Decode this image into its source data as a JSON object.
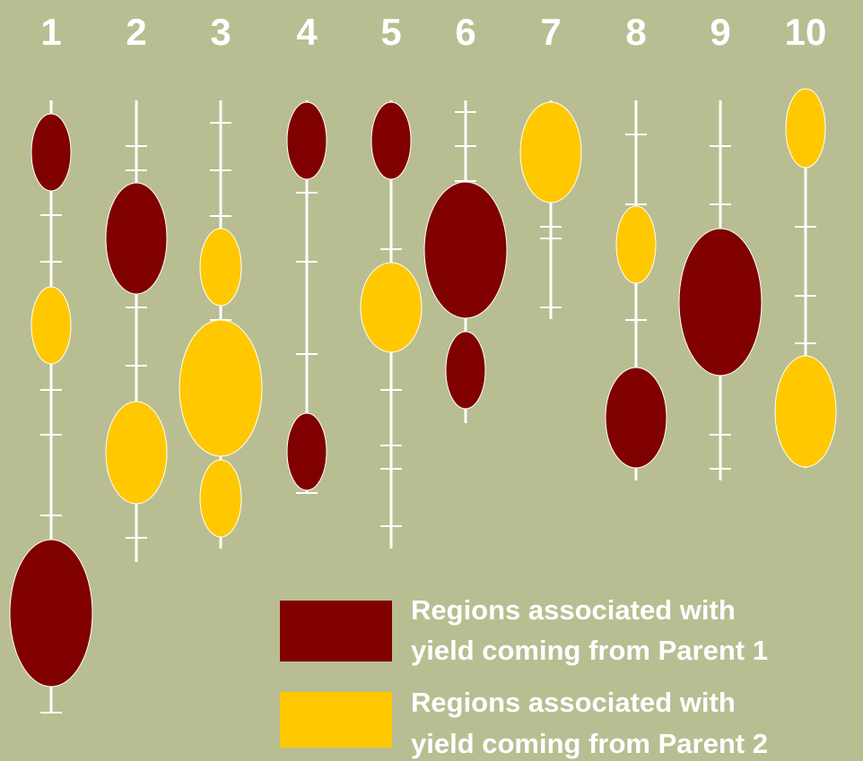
{
  "chromosomes": [
    {
      "label": "1"
    },
    {
      "label": "2"
    },
    {
      "label": "3"
    },
    {
      "label": "4"
    },
    {
      "label": "5"
    },
    {
      "label": "6"
    },
    {
      "label": "7"
    },
    {
      "label": "8"
    },
    {
      "label": "9"
    },
    {
      "label": "10"
    }
  ],
  "legend": [
    {
      "lines": [
        "Regions associated with",
        "yield coming from Parent 1"
      ]
    },
    {
      "lines": [
        "Regions associated with",
        "yield coming from Parent 2"
      ]
    }
  ]
}
